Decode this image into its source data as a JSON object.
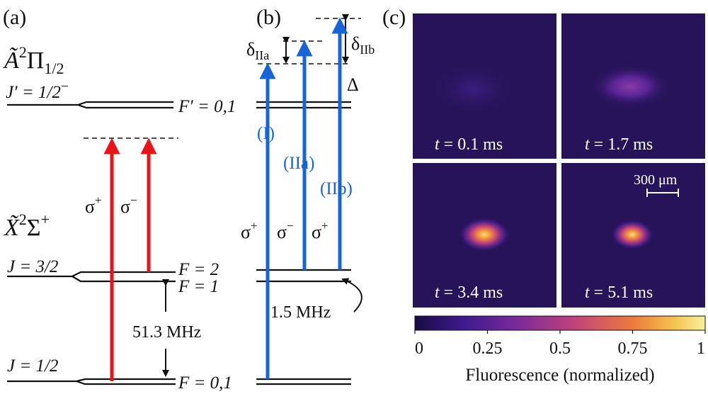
{
  "colors": {
    "red_laser": "#e8141a",
    "blue_laser": "#1764d6",
    "level_line": "#111111",
    "panel_bg": "#2a155e",
    "colormap": [
      "#190c46",
      "#3e1a8e",
      "#7a2a9c",
      "#c1427a",
      "#ec7a3c",
      "#f6c64f",
      "#f7f2a0"
    ]
  },
  "panel_a": {
    "label": "(a)",
    "excited_state": {
      "base": "Ã",
      "sup": "2",
      "sym": "Π",
      "sub": "1/2"
    },
    "excited_level": {
      "j_label": "J′ = 1/2",
      "j_parity": "−",
      "f_label": "F′ = 0,1"
    },
    "ground_state": {
      "base": "X̃",
      "sup": "2",
      "sym": "Σ",
      "sup2": "+"
    },
    "ground_upper": {
      "j_label": "J = 3/2",
      "f2": "F = 2",
      "f1": "F = 1"
    },
    "ground_lower": {
      "j_label": "J = 1/2",
      "f_label": "F = 0,1"
    },
    "splitting": "51.3 MHz",
    "transitions": [
      {
        "pol_sym": "σ",
        "pol_sign": "+"
      },
      {
        "pol_sym": "σ",
        "pol_sign": "−"
      }
    ]
  },
  "panel_b": {
    "label": "(b)",
    "detunings": [
      {
        "sym": "δ",
        "sub": "IIa"
      },
      {
        "sym": "δ",
        "sub": "IIb"
      }
    ],
    "delta": "Δ",
    "transitions": [
      {
        "name": "(I)",
        "pol_sym": "σ",
        "pol_sign": "+"
      },
      {
        "name": "(IIa)",
        "pol_sym": "σ",
        "pol_sign": "−"
      },
      {
        "name": "(IIb)",
        "pol_sym": "σ",
        "pol_sign": "+"
      }
    ],
    "splitting": "1.5 MHz"
  },
  "panel_c": {
    "label": "(c)",
    "snapshots": [
      {
        "time": "0.1 ms",
        "intensity": 0.06
      },
      {
        "time": "1.7 ms",
        "intensity": 0.38
      },
      {
        "time": "3.4 ms",
        "intensity": 0.95
      },
      {
        "time": "5.1 ms",
        "intensity": 0.95
      }
    ],
    "time_symbol": "t",
    "time_eq": " = ",
    "scale_bar": "300 μm",
    "colorbar": {
      "ticks": [
        "0",
        "0.25",
        "0.5",
        "0.75",
        "1"
      ],
      "tick_values": [
        0,
        0.25,
        0.5,
        0.75,
        1
      ],
      "label": "Fluorescence (normalized)"
    }
  }
}
